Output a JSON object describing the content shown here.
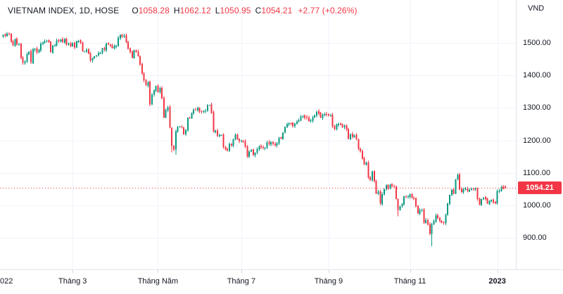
{
  "header": {
    "title": "VIETNAM INDEX, 1D, HOSE",
    "ohlc": [
      {
        "label": "O",
        "value": "1058.28"
      },
      {
        "label": "H",
        "value": "1062.12"
      },
      {
        "label": "L",
        "value": "1050.95"
      },
      {
        "label": "C",
        "value": "1054.21"
      }
    ],
    "change": "+2.77 (+0.26%)"
  },
  "price_axis": {
    "currency_label": "VND",
    "ticks": [
      1500,
      1400,
      1300,
      1200,
      1100,
      1000,
      900
    ],
    "last_price": "1054.21"
  },
  "time_axis": {
    "labels": [
      {
        "text": "022",
        "index": 0,
        "edge": true
      },
      {
        "text": "Tháng 3",
        "index": 35
      },
      {
        "text": "Tháng Năm",
        "index": 78
      },
      {
        "text": "Tháng 7",
        "index": 120
      },
      {
        "text": "Tháng 9",
        "index": 164
      },
      {
        "text": "Tháng 11",
        "index": 205
      },
      {
        "text": "2023",
        "index": 249,
        "bold": true
      }
    ]
  },
  "colors": {
    "up": "#089981",
    "down": "#f23645",
    "grid": "#f0f3fa",
    "axis_border": "#e0e3eb",
    "text": "#131722",
    "badge_bg": "#f23645",
    "badge_text": "#ffffff",
    "last_price_line": "#f23645"
  },
  "chart_data": {
    "type": "candlestick",
    "title": "VIETNAM INDEX, 1D, HOSE",
    "symbol": "VIETNAM INDEX",
    "interval": "1D",
    "exchange": "HOSE",
    "currency": "VND",
    "ylabel": "VND",
    "ylim": [
      845,
      1560
    ],
    "grid": true,
    "x_period": "Jan 2022 - Jan 2023, daily sessions",
    "last_candle": {
      "open": 1058.28,
      "high": 1062.12,
      "low": 1050.95,
      "close": 1054.21,
      "change": 2.77,
      "change_pct": 0.26
    },
    "closes": [
      1525,
      1522,
      1529,
      1528,
      1504,
      1492,
      1511,
      1496,
      1496,
      1453,
      1439,
      1443,
      1465,
      1473,
      1440,
      1480,
      1482,
      1471,
      1479,
      1498,
      1501,
      1505,
      1507,
      1502,
      1472,
      1492,
      1493,
      1508,
      1505,
      1511,
      1503,
      1512,
      1495,
      1499,
      1490,
      1499,
      1486,
      1505,
      1506,
      1499,
      1474,
      1474,
      1479,
      1467,
      1446,
      1453,
      1459,
      1461,
      1469,
      1470,
      1484,
      1479,
      1498,
      1495,
      1491,
      1484,
      1490,
      1492,
      1516,
      1525,
      1520,
      1523,
      1502,
      1482,
      1472,
      1455,
      1477,
      1472,
      1459,
      1433,
      1406,
      1385,
      1370,
      1379,
      1311,
      1341,
      1354,
      1367,
      1349,
      1361,
      1329,
      1270,
      1294,
      1302,
      1239,
      1183,
      1172,
      1228,
      1241,
      1242,
      1240,
      1219,
      1233,
      1269,
      1268,
      1285,
      1294,
      1293,
      1300,
      1289,
      1288,
      1290,
      1291,
      1308,
      1308,
      1284,
      1227,
      1230,
      1214,
      1217,
      1217,
      1180,
      1172,
      1169,
      1189,
      1185,
      1203,
      1218,
      1204,
      1198,
      1199,
      1196,
      1181,
      1150,
      1166,
      1171,
      1155,
      1162,
      1174,
      1182,
      1179,
      1176,
      1178,
      1194,
      1189,
      1195,
      1189,
      1185,
      1192,
      1208,
      1206,
      1224,
      1241,
      1250,
      1253,
      1252,
      1244,
      1252,
      1258,
      1262,
      1274,
      1275,
      1270,
      1269,
      1260,
      1262,
      1271,
      1277,
      1288,
      1283,
      1271,
      1279,
      1281,
      1280,
      1277,
      1277,
      1243,
      1235,
      1249,
      1250,
      1248,
      1241,
      1246,
      1234,
      1205,
      1219,
      1211,
      1215,
      1203,
      1174,
      1167,
      1144,
      1126,
      1132,
      1086,
      1078,
      1104,
      1074,
      1036,
      1042,
      1006,
      1035,
      1051,
      1062,
      1052,
      1064,
      1060,
      1058,
      1020,
      986,
      998,
      1005,
      1028,
      1027,
      1028,
      1034,
      1023,
      1020,
      997,
      975,
      986,
      986,
      947,
      955,
      941,
      912,
      943,
      952,
      969,
      961,
      952,
      947,
      946,
      971,
      1006,
      1032,
      1048,
      1036,
      1080,
      1094,
      1049,
      1041,
      1050,
      1052,
      1044,
      1048,
      1051,
      1050,
      1052,
      1020,
      1002,
      1019,
      1023,
      1020,
      1005,
      1014,
      1016,
      1009,
      1007,
      1044,
      1046,
      1056,
      1051,
      1054.21
    ],
    "special_candles": {
      "85": [
        1238,
        1241,
        1163,
        1183
      ],
      "87": [
        1172,
        1233,
        1156,
        1228
      ],
      "199": [
        1020,
        1022,
        966,
        986
      ],
      "216": [
        912,
        946,
        874,
        943
      ],
      "253": [
        1058.28,
        1062.12,
        1050.95,
        1054.21
      ]
    },
    "month_gridline_indices": [
      35,
      78,
      120,
      164,
      205,
      249
    ],
    "last_close_line": 1054.21
  }
}
